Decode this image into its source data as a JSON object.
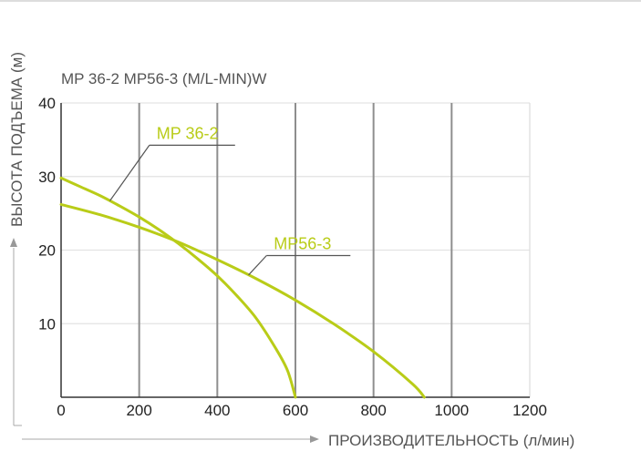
{
  "chart_data": {
    "type": "line",
    "subtitle": "MP 36-2 MP56-3 (M/L-MIN)W",
    "xlabel": "ПРОИЗВОДИТЕЛЬНОСТЬ (л/мин)",
    "ylabel": "ВЫСОТА ПОДЪЕМА (м)",
    "xlim": [
      0,
      1200
    ],
    "ylim": [
      0,
      40
    ],
    "x_ticks": [
      {
        "value": 0,
        "label": "0"
      },
      {
        "value": 200,
        "label": "200"
      },
      {
        "value": 400,
        "label": "400"
      },
      {
        "value": 600,
        "label": "600"
      },
      {
        "value": 800,
        "label": "800"
      },
      {
        "value": 1000,
        "label": "1000"
      },
      {
        "value": 1200,
        "label": "1200"
      }
    ],
    "y_ticks": [
      {
        "value": 10,
        "label": "10"
      },
      {
        "value": 20,
        "label": "20"
      },
      {
        "value": 30,
        "label": "30"
      },
      {
        "value": 40,
        "label": "40"
      }
    ],
    "grid": true,
    "series_color": "#b9cc18",
    "series": [
      {
        "name": "MP 36-2",
        "x": [
          0,
          50,
          100,
          150,
          200,
          250,
          300,
          350,
          400,
          450,
          500,
          550,
          580,
          600
        ],
        "y": [
          29.8,
          28.6,
          27.4,
          26.0,
          24.5,
          22.8,
          20.9,
          18.8,
          16.5,
          13.8,
          10.7,
          6.6,
          3.6,
          0
        ]
      },
      {
        "name": "MP56-3",
        "x": [
          0,
          100,
          200,
          300,
          400,
          500,
          600,
          700,
          800,
          900,
          930
        ],
        "y": [
          26.2,
          24.8,
          23.1,
          21.1,
          18.7,
          16.1,
          13.2,
          9.9,
          6.2,
          1.8,
          0
        ]
      }
    ],
    "callouts": [
      {
        "series": 0,
        "label_x": 240,
        "label_y": 35
      },
      {
        "series": 1,
        "label_x": 540,
        "label_y": 20
      }
    ]
  }
}
